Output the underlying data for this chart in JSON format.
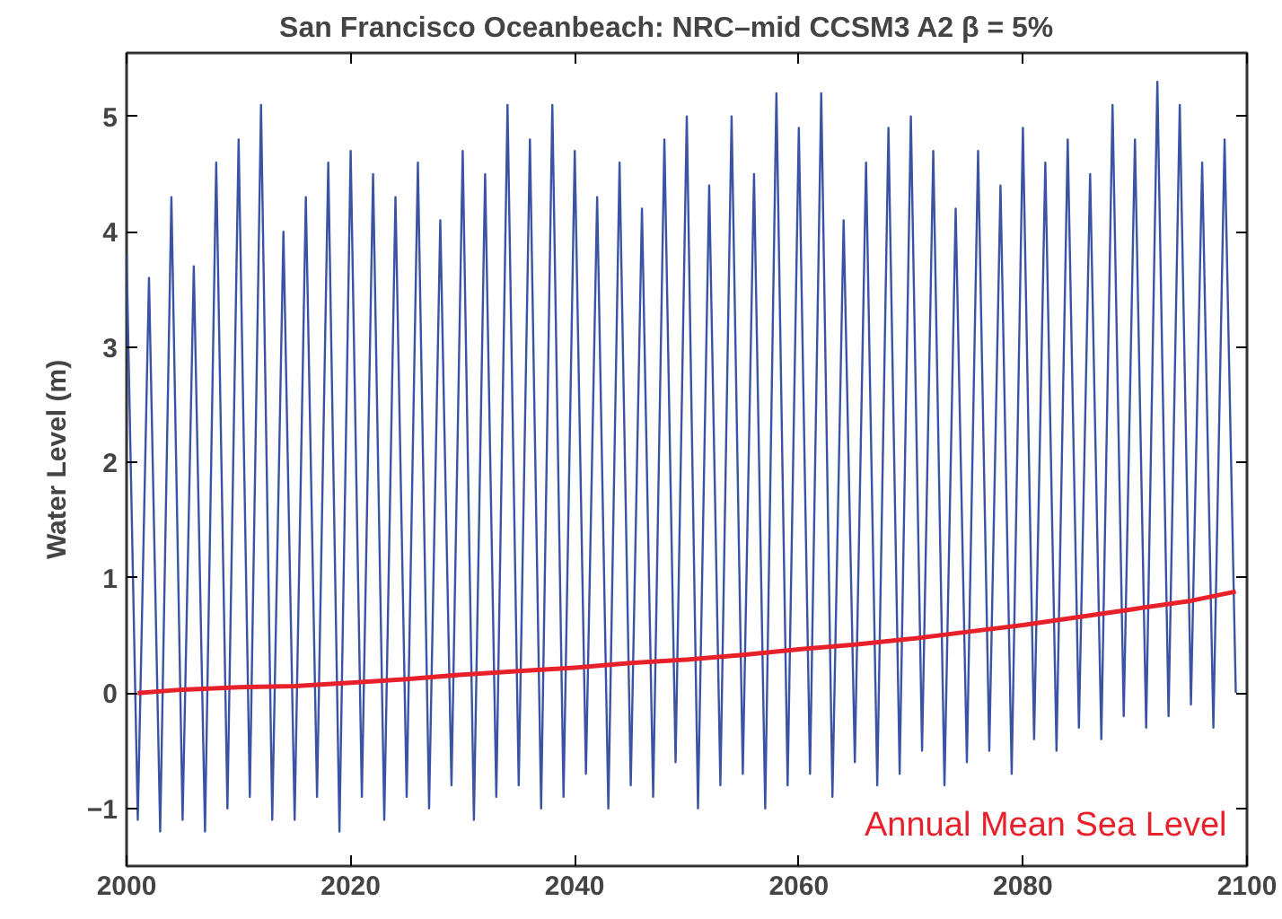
{
  "chart_data": {
    "type": "line",
    "title": "San Francisco Oceanbeach:  NRC–mid   CCSM3 A2   β = 5%",
    "ylabel": "Water Level (m)",
    "xlim": [
      2000,
      2100
    ],
    "ylim": [
      -1.5,
      5.55
    ],
    "xticks": [
      2000,
      2020,
      2040,
      2060,
      2080,
      2100
    ],
    "yticks": [
      -1,
      0,
      1,
      2,
      3,
      4,
      5
    ],
    "grid": false,
    "legend": false,
    "marker": "none",
    "line_style": "solid",
    "series": [
      {
        "color": "#3a53a4",
        "x": [
          2000,
          2001,
          2002,
          2003,
          2004,
          2005,
          2006,
          2007,
          2008,
          2009,
          2010,
          2011,
          2012,
          2013,
          2014,
          2015,
          2016,
          2017,
          2018,
          2019,
          2020,
          2021,
          2022,
          2023,
          2024,
          2025,
          2026,
          2027,
          2028,
          2029,
          2030,
          2031,
          2032,
          2033,
          2034,
          2035,
          2036,
          2037,
          2038,
          2039,
          2040,
          2041,
          2042,
          2043,
          2044,
          2045,
          2046,
          2047,
          2048,
          2049,
          2050,
          2051,
          2052,
          2053,
          2054,
          2055,
          2056,
          2057,
          2058,
          2059,
          2060,
          2061,
          2062,
          2063,
          2064,
          2065,
          2066,
          2067,
          2068,
          2069,
          2070,
          2071,
          2072,
          2073,
          2074,
          2075,
          2076,
          2077,
          2078,
          2079,
          2080,
          2081,
          2082,
          2083,
          2084,
          2085,
          2086,
          2087,
          2088,
          2089,
          2090,
          2091,
          2092,
          2093,
          2094,
          2095,
          2096,
          2097,
          2098,
          2099
        ],
        "values": [
          3.8,
          -1.1,
          3.6,
          -1.2,
          4.3,
          -1.1,
          3.7,
          -1.2,
          4.6,
          -1.0,
          4.8,
          -0.9,
          5.1,
          -1.1,
          4.0,
          -1.1,
          4.3,
          -0.9,
          4.6,
          -1.2,
          4.7,
          -0.9,
          4.5,
          -1.1,
          4.3,
          -0.9,
          4.6,
          -1.0,
          4.1,
          -0.8,
          4.7,
          -1.1,
          4.5,
          -0.9,
          5.1,
          -0.8,
          4.8,
          -1.0,
          5.1,
          -0.9,
          4.7,
          -0.7,
          4.3,
          -1.0,
          4.6,
          -0.8,
          4.2,
          -0.9,
          4.8,
          -0.6,
          5.0,
          -1.0,
          4.4,
          -0.8,
          5.0,
          -0.7,
          4.5,
          -1.0,
          5.2,
          -0.8,
          4.9,
          -0.7,
          5.2,
          -0.9,
          4.1,
          -0.6,
          4.6,
          -0.8,
          4.9,
          -0.7,
          5.0,
          -0.5,
          4.7,
          -0.8,
          4.2,
          -0.6,
          4.7,
          -0.5,
          4.4,
          -0.7,
          4.9,
          -0.4,
          4.6,
          -0.5,
          4.8,
          -0.3,
          4.5,
          -0.4,
          5.1,
          -0.2,
          4.8,
          -0.3,
          5.3,
          -0.2,
          5.1,
          -0.1,
          4.6,
          -0.3,
          4.8,
          0.0
        ]
      },
      {
        "name": "Annual Mean Sea Level",
        "color": "#e8202a",
        "x": [
          2001,
          2005,
          2010,
          2015,
          2020,
          2025,
          2030,
          2035,
          2040,
          2045,
          2050,
          2055,
          2060,
          2065,
          2070,
          2075,
          2080,
          2085,
          2090,
          2095,
          2099
        ],
        "values": [
          0.0,
          0.03,
          0.05,
          0.06,
          0.09,
          0.12,
          0.16,
          0.19,
          0.22,
          0.26,
          0.29,
          0.33,
          0.38,
          0.42,
          0.47,
          0.53,
          0.59,
          0.66,
          0.73,
          0.8,
          0.88
        ]
      }
    ]
  }
}
